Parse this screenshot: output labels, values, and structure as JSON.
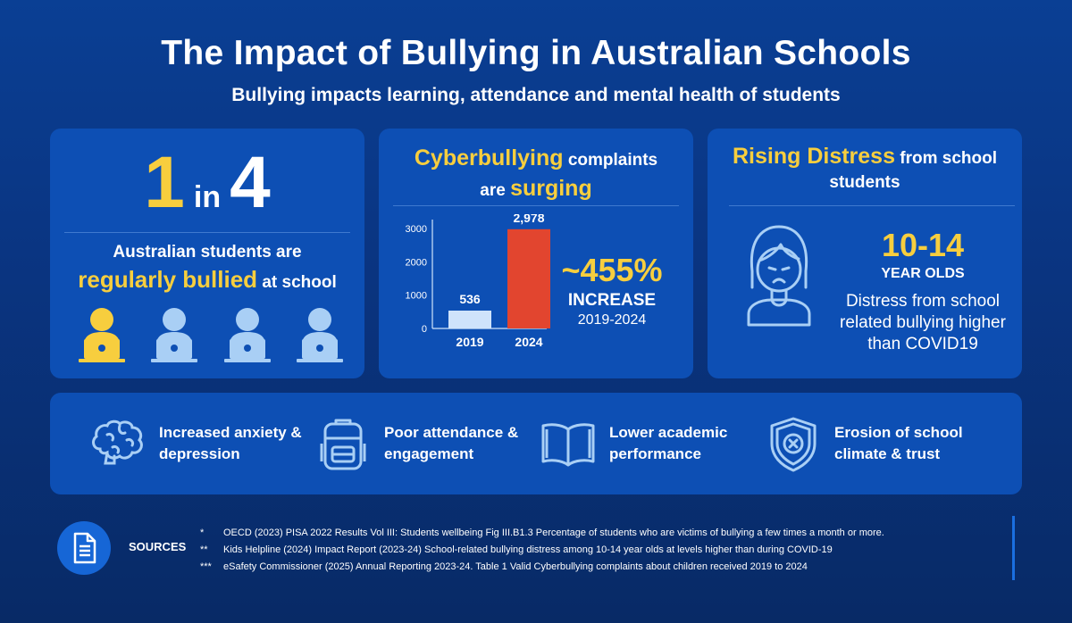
{
  "header": {
    "title": "The Impact of Bullying in Australian Schools",
    "subtitle": "Bullying impacts learning, attendance and mental health of students"
  },
  "card1": {
    "stat_num": "1",
    "stat_mid": "in",
    "stat_den": "4",
    "line1": "Australian students are",
    "highlight": "regularly bullied",
    "line2_rest": " at school",
    "students_total": 4,
    "students_highlighted": 1,
    "colors": {
      "highlight": "#f7ce3e",
      "normal": "#a9cff5"
    }
  },
  "card2": {
    "head_y1": "Cyberbullying",
    "head_w1": " complaints",
    "head_w2": "are ",
    "head_y2": "surging",
    "increase_pct": "~455%",
    "increase_label": "INCREASE",
    "increase_range": "2019-2024"
  },
  "chart_data": {
    "type": "bar",
    "categories": [
      "2019",
      "2024"
    ],
    "values": [
      536,
      2978
    ],
    "value_labels": [
      "536",
      "2,978"
    ],
    "yticks": [
      "0",
      "1000",
      "2000",
      "3000"
    ],
    "ylim": [
      0,
      3000
    ],
    "colors": [
      "#cfe3fb",
      "#e2452f"
    ],
    "title": "",
    "xlabel": "",
    "ylabel": ""
  },
  "card3": {
    "head_y": "Rising Distress",
    "head_w1": " from school",
    "head_w2": "students",
    "age": "10-14",
    "age_label": "YEAR OLDS",
    "desc": "Distress from school related bullying higher than COVID19",
    "icon": "girl-face-icon"
  },
  "impacts": [
    {
      "icon": "brain-icon",
      "label": "Increased anxiety & depression"
    },
    {
      "icon": "backpack-icon",
      "label": "Poor attendance & engagement"
    },
    {
      "icon": "book-icon",
      "label": "Lower academic performance"
    },
    {
      "icon": "shield-x-icon",
      "label": "Erosion of school climate & trust"
    }
  ],
  "sources": {
    "label": "SOURCES",
    "icon": "document-icon",
    "items": [
      {
        "mark": "*",
        "text": "OECD (2023) PISA 2022 Results Vol III: Students wellbeing Fig III.B1.3 Percentage of students who are victims of bullying a few times a month or more."
      },
      {
        "mark": "**",
        "text": "Kids Helpline (2024) Impact Report (2023-24) School-related bullying distress among 10-14 year olds at levels higher than during COVID-19"
      },
      {
        "mark": "***",
        "text": "eSafety Commissioner (2025) Annual Reporting 2023-24. Table 1 Valid Cyberbullying complaints about children received 2019 to 2024"
      }
    ]
  }
}
